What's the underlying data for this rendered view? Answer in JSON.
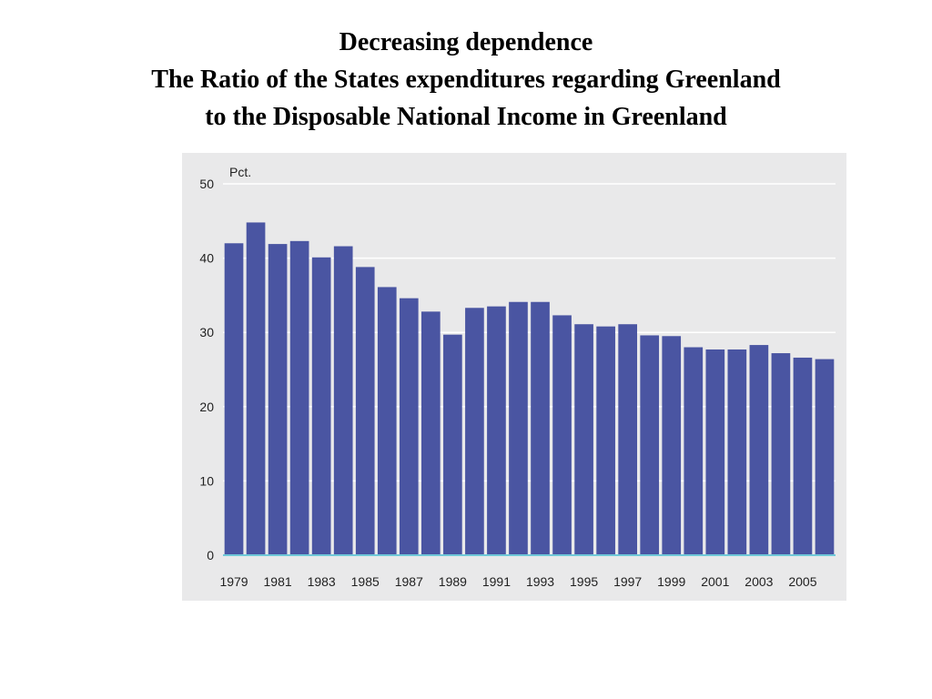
{
  "slide": {
    "title_lines": [
      "Decreasing dependence",
      "The Ratio of the States expenditures regarding Greenland",
      "to the Disposable National Income in Greenland"
    ]
  },
  "chart_data": {
    "type": "bar",
    "unit_label": "Pct.",
    "categories": [
      "1979",
      "1980",
      "1981",
      "1982",
      "1983",
      "1984",
      "1985",
      "1986",
      "1987",
      "1988",
      "1989",
      "1990",
      "1991",
      "1992",
      "1993",
      "1994",
      "1995",
      "1996",
      "1997",
      "1998",
      "1999",
      "2000",
      "2001",
      "2002",
      "2003",
      "2004",
      "2005",
      "2006"
    ],
    "x_tick_labels": [
      "1979",
      "1981",
      "1983",
      "1985",
      "1987",
      "1989",
      "1991",
      "1993",
      "1995",
      "1997",
      "1999",
      "2001",
      "2003",
      "2005"
    ],
    "values": [
      42.0,
      44.8,
      41.9,
      42.3,
      40.1,
      41.6,
      38.8,
      36.1,
      34.6,
      32.8,
      29.7,
      33.3,
      33.5,
      34.1,
      34.1,
      32.3,
      31.1,
      30.8,
      31.1,
      29.6,
      29.5,
      28.0,
      27.7,
      27.7,
      28.3,
      27.2,
      26.6,
      26.4
    ],
    "ylim": [
      0,
      50
    ],
    "y_ticks": [
      0,
      10,
      20,
      30,
      40,
      50
    ],
    "grid": true,
    "colors": {
      "bar": "#4a55a2",
      "background": "#e9e9ea",
      "grid": "#ffffff",
      "baseline": "#6fc9d8"
    }
  }
}
